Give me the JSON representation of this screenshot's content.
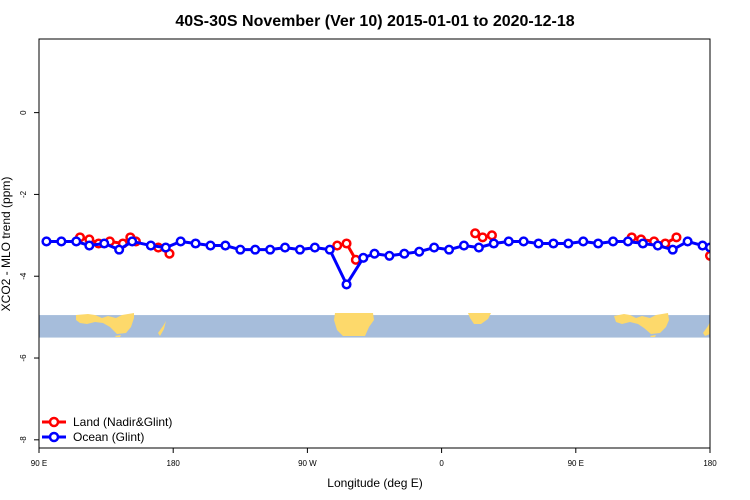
{
  "chart_data": {
    "type": "line",
    "title": "40S-30S November (Ver 10)   2015-01-01 to 2020-12-18",
    "xlabel": "Longitude (deg E)",
    "ylabel": "XCO2 - MLO trend (ppm)",
    "xlim": [
      90,
      450
    ],
    "ylim": [
      -8.2,
      1.8
    ],
    "x_ticks": [
      {
        "value": 90,
        "label": "90 E"
      },
      {
        "value": 162,
        "label": "180"
      },
      {
        "value": 234,
        "label": "90 W"
      },
      {
        "value": 306,
        "label": "0"
      },
      {
        "value": 378,
        "label": "90 E"
      },
      {
        "value": 450,
        "label": "180"
      }
    ],
    "y_ticks": [
      {
        "value": 0,
        "label": "0"
      },
      {
        "value": -2,
        "label": "-2"
      },
      {
        "value": -4,
        "label": "-4"
      },
      {
        "value": -6,
        "label": "-6"
      },
      {
        "value": -8,
        "label": "-8"
      }
    ],
    "map_band": {
      "y_top": -4.95,
      "y_bottom": -5.5,
      "ocean_color": "#a6bddb",
      "land_color": "#fdd96b"
    },
    "grid": false,
    "legend_position": "bottom-left",
    "series": [
      {
        "name": "Land (Nadir&Glint)",
        "color": "#ff0000",
        "segments": [
          [
            [
              112,
              -3.05
            ],
            [
              117,
              -3.1
            ],
            [
              122,
              -3.2
            ],
            [
              128,
              -3.15
            ],
            [
              135,
              -3.2
            ],
            [
              139,
              -3.05
            ],
            [
              142,
              -3.15
            ]
          ],
          [
            [
              154,
              -3.3
            ],
            [
              160,
              -3.45
            ]
          ],
          [
            [
              250,
              -3.25
            ],
            [
              255,
              -3.2
            ],
            [
              260,
              -3.6
            ]
          ],
          [
            [
              324,
              -2.95
            ],
            [
              328,
              -3.05
            ],
            [
              333,
              -3.0
            ]
          ],
          [
            [
              408,
              -3.05
            ],
            [
              413,
              -3.1
            ],
            [
              420,
              -3.15
            ],
            [
              426,
              -3.2
            ],
            [
              432,
              -3.05
            ]
          ],
          [
            [
              450,
              -3.5
            ]
          ]
        ]
      },
      {
        "name": "Ocean (Glint)",
        "color": "#0000ff",
        "segments": [
          [
            [
              94,
              -3.15
            ],
            [
              102,
              -3.15
            ],
            [
              110,
              -3.15
            ],
            [
              117,
              -3.25
            ],
            [
              125,
              -3.2
            ],
            [
              133,
              -3.35
            ],
            [
              140,
              -3.15
            ],
            [
              150,
              -3.25
            ],
            [
              158,
              -3.3
            ],
            [
              166,
              -3.15
            ],
            [
              174,
              -3.2
            ],
            [
              182,
              -3.25
            ],
            [
              190,
              -3.25
            ],
            [
              198,
              -3.35
            ],
            [
              206,
              -3.35
            ],
            [
              214,
              -3.35
            ],
            [
              222,
              -3.3
            ],
            [
              230,
              -3.35
            ],
            [
              238,
              -3.3
            ],
            [
              246,
              -3.35
            ],
            [
              255,
              -4.2
            ],
            [
              264,
              -3.55
            ],
            [
              270,
              -3.45
            ],
            [
              278,
              -3.5
            ],
            [
              286,
              -3.45
            ],
            [
              294,
              -3.4
            ],
            [
              302,
              -3.3
            ],
            [
              310,
              -3.35
            ],
            [
              318,
              -3.25
            ],
            [
              326,
              -3.3
            ],
            [
              334,
              -3.2
            ],
            [
              342,
              -3.15
            ],
            [
              350,
              -3.15
            ],
            [
              358,
              -3.2
            ],
            [
              366,
              -3.2
            ],
            [
              374,
              -3.2
            ],
            [
              382,
              -3.15
            ],
            [
              390,
              -3.2
            ],
            [
              398,
              -3.15
            ],
            [
              406,
              -3.15
            ],
            [
              414,
              -3.2
            ],
            [
              422,
              -3.25
            ],
            [
              430,
              -3.35
            ],
            [
              438,
              -3.15
            ],
            [
              446,
              -3.25
            ],
            [
              450,
              -3.3
            ]
          ]
        ]
      }
    ]
  }
}
